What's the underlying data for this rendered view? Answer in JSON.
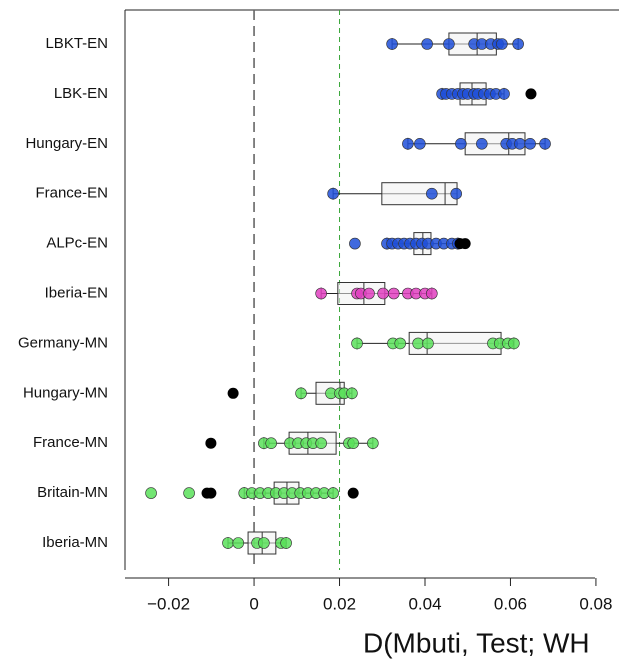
{
  "chart_data": {
    "type": "boxplot",
    "x_label": "D(Mbuti, Test; WH",
    "xlim": [
      -0.0302,
      0.0854
    ],
    "xticks": [
      {
        "value": -0.02,
        "label": "−0.02"
      },
      0,
      0.02,
      0.04,
      0.06,
      0.08
    ],
    "reference_lines": [
      {
        "value": 0,
        "color": "#666666"
      },
      {
        "value": 0.02,
        "color": "#3aa63a"
      }
    ],
    "outlier_color": "#000000",
    "series": [
      {
        "name": "LBKT-EN",
        "color": "#1f4fd8",
        "box": [
          0.0456,
          0.0522,
          0.0567
        ],
        "whisker": [
          0.0323,
          0.0618
        ],
        "points": [
          0.0323,
          0.0405,
          0.0456,
          0.0515,
          0.0533,
          0.0554,
          0.0571,
          0.058,
          0.0618
        ],
        "outliers": []
      },
      {
        "name": "LBK-EN",
        "color": "#1f4fd8",
        "box": [
          0.0482,
          0.051,
          0.0543
        ],
        "whisker": [
          0.044,
          0.0585
        ],
        "points": [
          0.044,
          0.0449,
          0.0463,
          0.0477,
          0.0489,
          0.05,
          0.0515,
          0.0524,
          0.0538,
          0.0552,
          0.0566,
          0.0585
        ],
        "outliers": [
          0.0648
        ]
      },
      {
        "name": "Hungary-EN",
        "color": "#1f4fd8",
        "box": [
          0.0494,
          0.0596,
          0.0634
        ],
        "whisker": [
          0.036,
          0.0681
        ],
        "points": [
          0.036,
          0.0388,
          0.0484,
          0.0533,
          0.059,
          0.0604,
          0.0622,
          0.0646,
          0.0681
        ],
        "outliers": []
      },
      {
        "name": "France-EN",
        "color": "#1f4fd8",
        "box": [
          0.0299,
          0.0447,
          0.0475
        ],
        "whisker": [
          0.0185,
          0.0475
        ],
        "points": [
          0.0185,
          0.0416,
          0.0473
        ],
        "outliers": []
      },
      {
        "name": "ALPc-EN",
        "color": "#1f4fd8",
        "box": [
          0.0374,
          0.0395,
          0.0414
        ],
        "whisker": [
          0.0311,
          0.0477
        ],
        "points": [
          0.0236,
          0.0311,
          0.0323,
          0.0337,
          0.0351,
          0.0365,
          0.0379,
          0.0393,
          0.0407,
          0.0426,
          0.0444,
          0.0463,
          0.0477
        ],
        "outliers": [
          0.0482,
          0.0494
        ]
      },
      {
        "name": "Iberia-EN",
        "color": "#e040c0",
        "box": [
          0.0196,
          0.0257,
          0.0306
        ],
        "whisker": [
          0.0157,
          0.0416
        ],
        "points": [
          0.0157,
          0.0241,
          0.025,
          0.0269,
          0.0302,
          0.0327,
          0.036,
          0.0379,
          0.04,
          0.0416
        ],
        "outliers": []
      },
      {
        "name": "Germany-MN",
        "color": "#5be05b",
        "box": [
          0.0363,
          0.0405,
          0.0578
        ],
        "whisker": [
          0.0241,
          0.0608
        ],
        "points": [
          0.0241,
          0.0325,
          0.0342,
          0.0384,
          0.0407,
          0.0559,
          0.0575,
          0.0594,
          0.0608
        ],
        "outliers": []
      },
      {
        "name": "Hungary-MN",
        "color": "#5be05b",
        "box": [
          0.0145,
          0.0201,
          0.0211
        ],
        "whisker": [
          0.011,
          0.0229
        ],
        "points": [
          0.011,
          0.018,
          0.0201,
          0.0211,
          0.0229
        ],
        "outliers": [
          -0.0049
        ]
      },
      {
        "name": "France-MN",
        "color": "#5be05b",
        "box": [
          0.0082,
          0.0126,
          0.0192
        ],
        "whisker": [
          0.0023,
          0.0278
        ],
        "points": [
          0.0023,
          0.004,
          0.0084,
          0.0103,
          0.0122,
          0.0138,
          0.0157,
          0.0222,
          0.0232,
          0.0278
        ],
        "outliers": [
          -0.0101
        ]
      },
      {
        "name": "Britain-MN",
        "color": "#5be05b",
        "box": [
          0.0047,
          0.0077,
          0.0105
        ],
        "whisker": [
          -0.0023,
          0.0185
        ],
        "points": [
          -0.0241,
          -0.0152,
          -0.0023,
          -0.0005,
          0.0014,
          0.0033,
          0.0051,
          0.007,
          0.0089,
          0.0108,
          0.0126,
          0.0145,
          0.0164,
          0.0185
        ],
        "outliers": [
          -0.011,
          -0.0101,
          0.0232
        ]
      },
      {
        "name": "Iberia-MN",
        "color": "#5be05b",
        "box": [
          -0.0014,
          0.0019,
          0.0051
        ],
        "whisker": [
          -0.0061,
          0.0075
        ],
        "points": [
          -0.0061,
          -0.0037,
          0.0007,
          0.0023,
          0.0063,
          0.0075
        ],
        "outliers": []
      }
    ]
  }
}
